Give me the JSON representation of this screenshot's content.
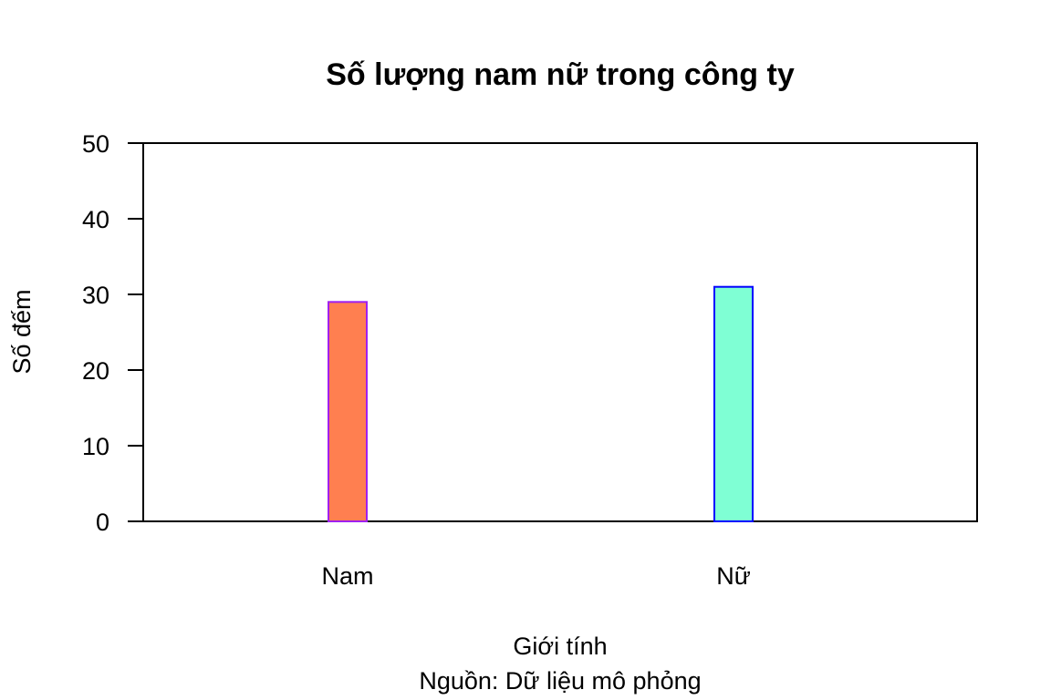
{
  "chart_data": {
    "type": "bar",
    "title": "Số lượng nam nữ trong công ty",
    "xlabel": "Giới tính",
    "ylabel": "Số đếm",
    "caption": "Nguồn: Dữ liệu mô phỏng",
    "categories": [
      "Nam",
      "Nữ"
    ],
    "values": [
      29,
      31
    ],
    "ylim": [
      0,
      50
    ],
    "yticks": [
      0,
      10,
      20,
      30,
      40,
      50
    ],
    "fill_colors": [
      "#FF7F50",
      "#7FFFD4"
    ],
    "border_colors": [
      "#A020F0",
      "#0000FF"
    ],
    "grid": false,
    "legend": "none"
  }
}
